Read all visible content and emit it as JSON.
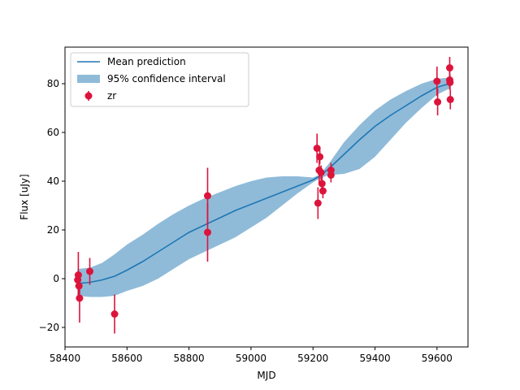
{
  "chart_data": {
    "type": "line",
    "title": "",
    "xlabel": "MJD",
    "ylabel": "Flux [uJy]",
    "xlim": [
      58400,
      59700
    ],
    "ylim": [
      -28,
      95
    ],
    "xticks": [
      58400,
      58600,
      58800,
      59000,
      59200,
      59400,
      59600
    ],
    "yticks": [
      -20,
      0,
      20,
      40,
      60,
      80
    ],
    "grid": false,
    "legend_position": "upper-left",
    "colors": {
      "mean": "#1f77b4",
      "band": "#1f77b4",
      "band_opacity": 0.5,
      "points": "#dc143c"
    },
    "legend": [
      {
        "label": "Mean prediction",
        "kind": "line"
      },
      {
        "label": "95% confidence interval",
        "kind": "band"
      },
      {
        "label": "zr",
        "kind": "errorbar"
      }
    ],
    "mean_prediction": {
      "name": "Mean prediction",
      "x": [
        58440,
        58480,
        58520,
        58560,
        58600,
        58650,
        58700,
        58750,
        58800,
        58850,
        58900,
        58950,
        59000,
        59050,
        59100,
        59150,
        59200,
        59220,
        59250,
        59300,
        59350,
        59400,
        59450,
        59500,
        59550,
        59600,
        59640
      ],
      "y": [
        -2,
        -1.5,
        -0.5,
        1,
        3.5,
        7,
        11,
        15,
        19,
        22,
        25,
        28,
        30.5,
        33,
        35.5,
        38,
        40.5,
        42,
        45,
        51,
        57,
        62.5,
        67,
        71,
        75,
        78.5,
        80
      ]
    },
    "confidence_interval": {
      "name": "95% confidence interval",
      "x": [
        58440,
        58480,
        58520,
        58560,
        58600,
        58650,
        58700,
        58750,
        58800,
        58850,
        58900,
        58950,
        59000,
        59050,
        59100,
        59150,
        59200,
        59220,
        59250,
        59300,
        59350,
        59400,
        59450,
        59500,
        59550,
        59600,
        59640
      ],
      "lower": [
        -7,
        -7.5,
        -7.5,
        -7,
        -5,
        -3,
        0,
        4,
        8,
        11,
        14,
        17,
        21,
        25,
        30,
        35,
        39.5,
        41,
        42.5,
        43,
        45,
        50,
        57,
        64,
        70,
        75.5,
        78
      ],
      "upper": [
        4,
        4.5,
        6.5,
        10,
        14,
        18,
        22.5,
        26.5,
        30,
        33,
        35.5,
        38,
        40,
        41.5,
        42,
        42,
        41.5,
        42.5,
        47,
        56,
        63,
        69,
        73.5,
        77,
        80,
        82,
        82.5
      ]
    },
    "points": {
      "name": "zr",
      "x": [
        58441,
        58443,
        58445,
        58447,
        58480,
        58560,
        58860,
        58860,
        59213,
        59216,
        59220,
        59222,
        59226,
        59229,
        59232,
        59258,
        59258,
        59600,
        59602,
        59641,
        59641,
        59642,
        59643
      ],
      "y": [
        -0.5,
        1.5,
        -3,
        -8,
        3,
        -14.5,
        34,
        19,
        53.5,
        31,
        44.5,
        50,
        43.5,
        39,
        36,
        44.5,
        42.5,
        81,
        72.5,
        86.5,
        81.5,
        80.5,
        73.5
      ],
      "err": [
        3,
        9.5,
        3,
        10,
        5.5,
        8,
        11.5,
        12,
        6,
        6.5,
        6,
        3,
        3,
        3,
        3,
        3,
        3,
        6,
        5.5,
        4.5,
        4,
        3,
        4
      ]
    }
  }
}
